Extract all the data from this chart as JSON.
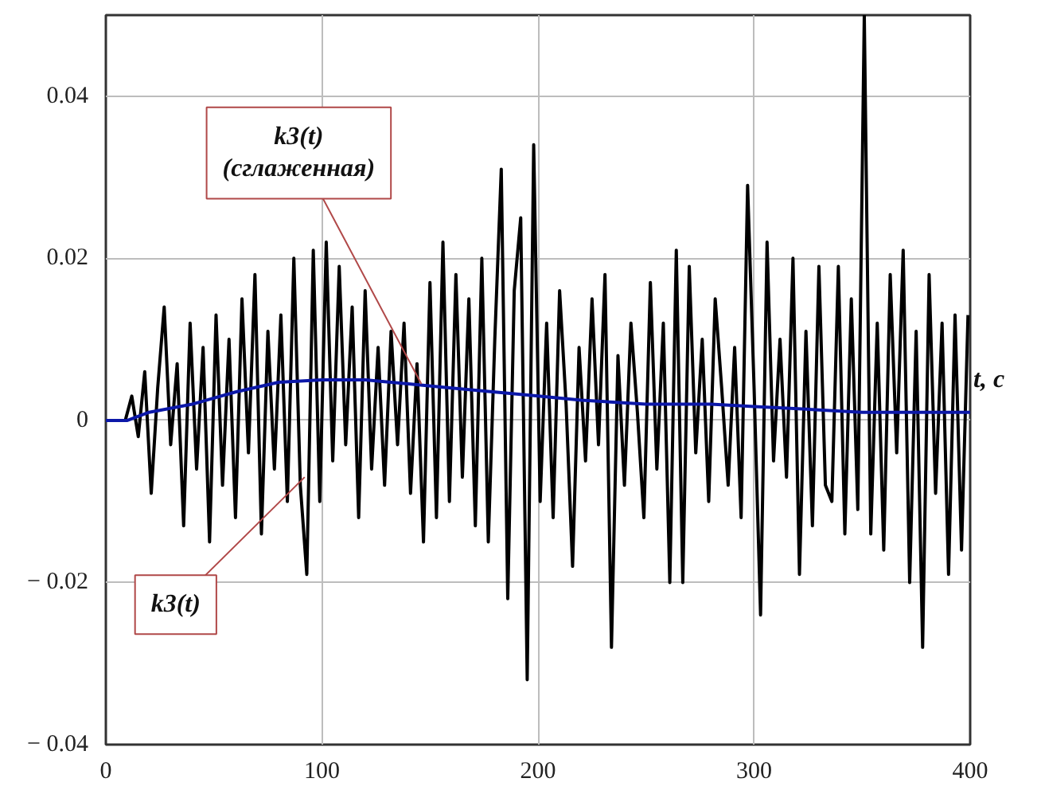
{
  "chart_data": {
    "type": "line",
    "xlabel": "t, c",
    "grid": true,
    "marker": "none",
    "line_style": "solid",
    "xlim": [
      0,
      400
    ],
    "ylim": [
      -0.04,
      0.05
    ],
    "xticks": [
      0,
      100,
      200,
      300,
      400
    ],
    "yticks": [
      {
        "value": -0.04,
        "label": "− 0.04"
      },
      {
        "value": -0.02,
        "label": "− 0.02"
      },
      0,
      0.02,
      0.04
    ],
    "annotations": [
      {
        "text": "k3(t)",
        "x": 92,
        "y": -0.007
      },
      {
        "text": "k3(t)\n(сглаженная)",
        "x": 146,
        "y": 0.0045
      }
    ],
    "series": [
      {
        "color": "#000000",
        "x": [
          0,
          9,
          12,
          15,
          18,
          21,
          24,
          27,
          30,
          33,
          36,
          39,
          42,
          45,
          48,
          51,
          54,
          57,
          60,
          63,
          66,
          69,
          72,
          75,
          78,
          81,
          84,
          87,
          90,
          93,
          96,
          99,
          102,
          105,
          108,
          111,
          114,
          117,
          120,
          123,
          126,
          129,
          132,
          135,
          138,
          141,
          144,
          147,
          150,
          153,
          156,
          159,
          162,
          165,
          168,
          171,
          174,
          177,
          180,
          183,
          186,
          189,
          192,
          195,
          198,
          201,
          204,
          207,
          210,
          213,
          216,
          219,
          222,
          225,
          228,
          231,
          234,
          237,
          240,
          243,
          246,
          249,
          252,
          255,
          258,
          261,
          264,
          267,
          270,
          273,
          276,
          279,
          282,
          285,
          288,
          291,
          294,
          297,
          300,
          303,
          306,
          309,
          312,
          315,
          318,
          321,
          324,
          327,
          330,
          333,
          336,
          339,
          342,
          345,
          348,
          351,
          354,
          357,
          360,
          363,
          366,
          369,
          372,
          375,
          378,
          381,
          384,
          387,
          390,
          393,
          396,
          399
        ],
        "values": [
          0,
          0,
          0.003,
          -0.002,
          0.006,
          -0.009,
          0.004,
          0.014,
          -0.003,
          0.007,
          -0.013,
          0.012,
          -0.006,
          0.009,
          -0.015,
          0.013,
          -0.008,
          0.01,
          -0.012,
          0.015,
          -0.004,
          0.018,
          -0.014,
          0.011,
          -0.006,
          0.013,
          -0.01,
          0.02,
          -0.008,
          -0.019,
          0.021,
          -0.01,
          0.022,
          -0.005,
          0.019,
          -0.003,
          0.014,
          -0.012,
          0.016,
          -0.006,
          0.009,
          -0.008,
          0.011,
          -0.003,
          0.012,
          -0.009,
          0.007,
          -0.015,
          0.017,
          -0.012,
          0.022,
          -0.01,
          0.018,
          -0.007,
          0.015,
          -0.013,
          0.02,
          -0.015,
          0.01,
          0.031,
          -0.022,
          0.016,
          0.025,
          -0.032,
          0.034,
          -0.01,
          0.012,
          -0.012,
          0.016,
          0.002,
          -0.018,
          0.009,
          -0.005,
          0.015,
          -0.003,
          0.018,
          -0.028,
          0.008,
          -0.008,
          0.012,
          0.001,
          -0.012,
          0.017,
          -0.006,
          0.012,
          -0.02,
          0.021,
          -0.02,
          0.019,
          -0.004,
          0.01,
          -0.01,
          0.015,
          0.004,
          -0.008,
          0.009,
          -0.012,
          0.029,
          0.004,
          -0.024,
          0.022,
          -0.005,
          0.01,
          -0.007,
          0.02,
          -0.019,
          0.011,
          -0.013,
          0.019,
          -0.008,
          -0.01,
          0.019,
          -0.014,
          0.015,
          -0.011,
          0.05,
          -0.014,
          0.012,
          -0.016,
          0.018,
          -0.004,
          0.021,
          -0.02,
          0.011,
          -0.028,
          0.018,
          -0.009,
          0.012,
          -0.019,
          0.013,
          -0.016,
          0.013
        ]
      },
      {
        "color": "#0c18a8",
        "x": [
          0,
          10,
          20,
          40,
          60,
          80,
          100,
          120,
          140,
          160,
          180,
          200,
          220,
          250,
          280,
          300,
          330,
          350,
          400
        ],
        "values": [
          0,
          0,
          0.001,
          0.002,
          0.0035,
          0.0047,
          0.005,
          0.005,
          0.0045,
          0.004,
          0.0035,
          0.003,
          0.0025,
          0.002,
          0.002,
          0.0017,
          0.0013,
          0.001,
          0.001
        ]
      }
    ]
  }
}
